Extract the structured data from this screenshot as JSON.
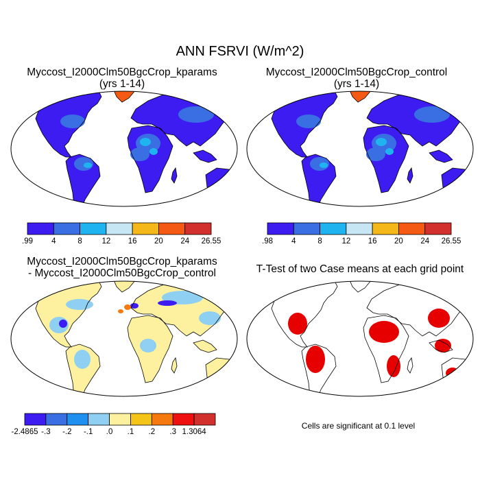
{
  "title": "ANN FSRVI (W/m^2)",
  "panels": [
    {
      "title_line1": "Myccost_I2000Clm50BgcCrop_kparams",
      "title_line2": "(yrs 1-14)"
    },
    {
      "title_line1": "Myccost_I2000Clm50BgcCrop_control",
      "title_line2": "(yrs 1-14)"
    },
    {
      "title_line1": "Myccost_I2000Clm50BgcCrop_kparams",
      "title_line2": "- Myccost_I2000Clm50BgcCrop_control"
    },
    {
      "title_line1": "T-Test of two Case means at each grid point",
      "title_line2": ""
    }
  ],
  "colorbars": [
    {
      "labels": [
        ".99",
        "4",
        "8",
        "12",
        "16",
        "20",
        "24",
        "26.55"
      ],
      "colors": [
        "#3d1cf2",
        "#3a6ee3",
        "#1fb4f0",
        "#c6e6f4",
        "#f4b81a",
        "#f45a14",
        "#d2302c"
      ]
    },
    {
      "labels": [
        ".98",
        "4",
        "8",
        "12",
        "16",
        "20",
        "24",
        "26.55"
      ],
      "colors": [
        "#3d1cf2",
        "#3a6ee3",
        "#1fb4f0",
        "#c6e6f4",
        "#f4b81a",
        "#f45a14",
        "#d2302c"
      ]
    },
    {
      "labels": [
        "-2.4865",
        "-.3",
        "-.2",
        "-.1",
        ".0",
        ".1",
        ".2",
        ".3",
        "1.3064"
      ],
      "colors": [
        "#3d1cf2",
        "#3a6ee3",
        "#1f8ff0",
        "#8fd0f2",
        "#fdf1a0",
        "#f5c419",
        "#f6790f",
        "#ef1010",
        "#d2302c"
      ]
    }
  ],
  "ttest_note": "Cells are significant at 0.1 level",
  "map_colors": {
    "blue_deep": "#3d1cf2",
    "blue_mid": "#3a6ee3",
    "cyan": "#1fb4f0",
    "pale_blue": "#c6e6f4",
    "orange": "#f45a14",
    "red": "#d2302c",
    "pale_yellow": "#fdf1a0",
    "signif_red": "#e60000"
  }
}
